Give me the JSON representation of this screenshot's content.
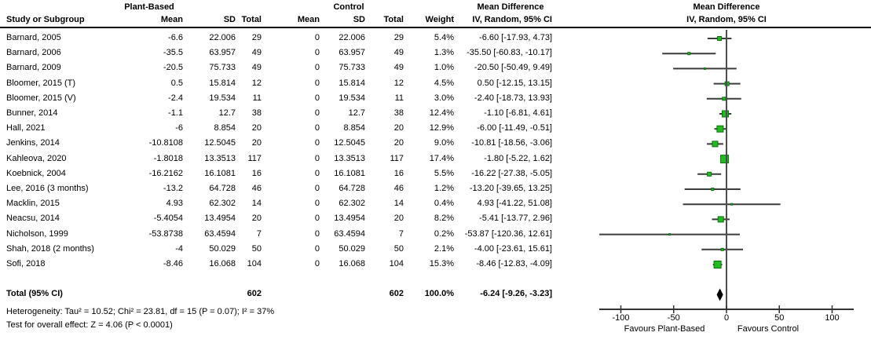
{
  "chart_data": {
    "type": "forest",
    "group1_label": "Plant-Based",
    "group2_label": "Control",
    "effect_label": "Mean Difference",
    "method_label": "IV, Random, 95% CI",
    "columns": [
      "Study or Subgroup",
      "Mean",
      "SD",
      "Total",
      "Mean",
      "SD",
      "Total",
      "Weight",
      "IV, Random, 95% CI"
    ],
    "studies": [
      {
        "name": "Barnard, 2005",
        "mean_t": "-6.6",
        "sd_t": "22.006",
        "n_t": "29",
        "mean_c": "0",
        "sd_c": "22.006",
        "n_c": "29",
        "weight": "5.4%",
        "ci": "-6.60 [-17.93, 4.73]",
        "est": -6.6,
        "lo": -17.93,
        "hi": 4.73,
        "w": 5.4
      },
      {
        "name": "Barnard, 2006",
        "mean_t": "-35.5",
        "sd_t": "63.957",
        "n_t": "49",
        "mean_c": "0",
        "sd_c": "63.957",
        "n_c": "49",
        "weight": "1.3%",
        "ci": "-35.50 [-60.83, -10.17]",
        "est": -35.5,
        "lo": -60.83,
        "hi": -10.17,
        "w": 1.3
      },
      {
        "name": "Barnard, 2009",
        "mean_t": "-20.5",
        "sd_t": "75.733",
        "n_t": "49",
        "mean_c": "0",
        "sd_c": "75.733",
        "n_c": "49",
        "weight": "1.0%",
        "ci": "-20.50 [-50.49, 9.49]",
        "est": -20.5,
        "lo": -50.49,
        "hi": 9.49,
        "w": 1.0
      },
      {
        "name": "Bloomer, 2015 (T)",
        "mean_t": "0.5",
        "sd_t": "15.814",
        "n_t": "12",
        "mean_c": "0",
        "sd_c": "15.814",
        "n_c": "12",
        "weight": "4.5%",
        "ci": "0.50 [-12.15, 13.15]",
        "est": 0.5,
        "lo": -12.15,
        "hi": 13.15,
        "w": 4.5
      },
      {
        "name": "Bloomer, 2015 (V)",
        "mean_t": "-2.4",
        "sd_t": "19.534",
        "n_t": "11",
        "mean_c": "0",
        "sd_c": "19.534",
        "n_c": "11",
        "weight": "3.0%",
        "ci": "-2.40 [-18.73, 13.93]",
        "est": -2.4,
        "lo": -18.73,
        "hi": 13.93,
        "w": 3.0
      },
      {
        "name": "Bunner, 2014",
        "mean_t": "-1.1",
        "sd_t": "12.7",
        "n_t": "38",
        "mean_c": "0",
        "sd_c": "12.7",
        "n_c": "38",
        "weight": "12.4%",
        "ci": "-1.10 [-6.81, 4.61]",
        "est": -1.1,
        "lo": -6.81,
        "hi": 4.61,
        "w": 12.4
      },
      {
        "name": "Hall, 2021",
        "mean_t": "-6",
        "sd_t": "8.854",
        "n_t": "20",
        "mean_c": "0",
        "sd_c": "8.854",
        "n_c": "20",
        "weight": "12.9%",
        "ci": "-6.00 [-11.49, -0.51]",
        "est": -6.0,
        "lo": -11.49,
        "hi": -0.51,
        "w": 12.9
      },
      {
        "name": "Jenkins, 2014",
        "mean_t": "-10.8108",
        "sd_t": "12.5045",
        "n_t": "20",
        "mean_c": "0",
        "sd_c": "12.5045",
        "n_c": "20",
        "weight": "9.0%",
        "ci": "-10.81 [-18.56, -3.06]",
        "est": -10.81,
        "lo": -18.56,
        "hi": -3.06,
        "w": 9.0
      },
      {
        "name": "Kahleova, 2020",
        "mean_t": "-1.8018",
        "sd_t": "13.3513",
        "n_t": "117",
        "mean_c": "0",
        "sd_c": "13.3513",
        "n_c": "117",
        "weight": "17.4%",
        "ci": "-1.80 [-5.22, 1.62]",
        "est": -1.8,
        "lo": -5.22,
        "hi": 1.62,
        "w": 17.4
      },
      {
        "name": "Koebnick, 2004",
        "mean_t": "-16.2162",
        "sd_t": "16.1081",
        "n_t": "16",
        "mean_c": "0",
        "sd_c": "16.1081",
        "n_c": "16",
        "weight": "5.5%",
        "ci": "-16.22 [-27.38, -5.05]",
        "est": -16.22,
        "lo": -27.38,
        "hi": -5.05,
        "w": 5.5
      },
      {
        "name": "Lee, 2016 (3 months)",
        "mean_t": "-13.2",
        "sd_t": "64.728",
        "n_t": "46",
        "mean_c": "0",
        "sd_c": "64.728",
        "n_c": "46",
        "weight": "1.2%",
        "ci": "-13.20 [-39.65, 13.25]",
        "est": -13.2,
        "lo": -39.65,
        "hi": 13.25,
        "w": 1.2
      },
      {
        "name": "Macklin, 2015",
        "mean_t": "4.93",
        "sd_t": "62.302",
        "n_t": "14",
        "mean_c": "0",
        "sd_c": "62.302",
        "n_c": "14",
        "weight": "0.4%",
        "ci": "4.93 [-41.22, 51.08]",
        "est": 4.93,
        "lo": -41.22,
        "hi": 51.08,
        "w": 0.4
      },
      {
        "name": "Neacsu, 2014",
        "mean_t": "-5.4054",
        "sd_t": "13.4954",
        "n_t": "20",
        "mean_c": "0",
        "sd_c": "13.4954",
        "n_c": "20",
        "weight": "8.2%",
        "ci": "-5.41 [-13.77, 2.96]",
        "est": -5.41,
        "lo": -13.77,
        "hi": 2.96,
        "w": 8.2
      },
      {
        "name": "Nicholson, 1999",
        "mean_t": "-53.8738",
        "sd_t": "63.4594",
        "n_t": "7",
        "mean_c": "0",
        "sd_c": "63.4594",
        "n_c": "7",
        "weight": "0.2%",
        "ci": "-53.87 [-120.36, 12.61]",
        "est": -53.87,
        "lo": -120.36,
        "hi": 12.61,
        "w": 0.2
      },
      {
        "name": "Shah, 2018 (2 months)",
        "mean_t": "-4",
        "sd_t": "50.029",
        "n_t": "50",
        "mean_c": "0",
        "sd_c": "50.029",
        "n_c": "50",
        "weight": "2.1%",
        "ci": "-4.00 [-23.61, 15.61]",
        "est": -4.0,
        "lo": -23.61,
        "hi": 15.61,
        "w": 2.1
      },
      {
        "name": "Sofi, 2018",
        "mean_t": "-8.46",
        "sd_t": "16.068",
        "n_t": "104",
        "mean_c": "0",
        "sd_c": "16.068",
        "n_c": "104",
        "weight": "15.3%",
        "ci": "-8.46 [-12.83, -4.09]",
        "est": -8.46,
        "lo": -12.83,
        "hi": -4.09,
        "w": 15.3
      }
    ],
    "total": {
      "label": "Total (95% CI)",
      "n_t": "602",
      "n_c": "602",
      "weight": "100.0%",
      "ci": "-6.24 [-9.26, -3.23]",
      "est": -6.24,
      "lo": -9.26,
      "hi": -3.23
    },
    "footnotes": [
      "Heterogeneity: Tau² = 10.52; Chi² = 23.81, df = 15 (P = 0.07); I² = 37%",
      "Test for overall effect: Z = 4.06 (P < 0.0001)"
    ],
    "axis": {
      "min": -100,
      "max": 100,
      "ticks": [
        "-100",
        "-50",
        "0",
        "50",
        "100"
      ],
      "tick_values": [
        -100,
        -50,
        0,
        50,
        100
      ],
      "left_label": "Favours Plant-Based",
      "right_label": "Favours Control"
    },
    "colors": {
      "marker_fill": "#21bb21",
      "marker_stroke": "#0c720c",
      "diamond": "#000000",
      "ci_line": "#3c3c3c",
      "zero_line": "#4d4d4d",
      "axis_line": "#333333"
    }
  }
}
